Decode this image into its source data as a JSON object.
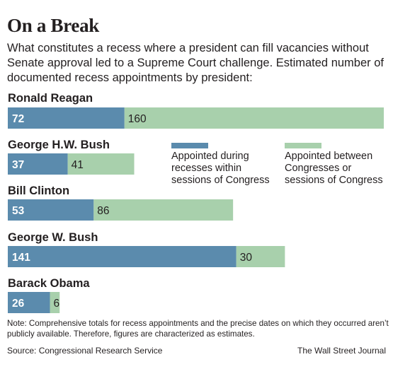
{
  "header": {
    "title": "On a Break",
    "subtitle": "What constitutes a recess where a president can fill vacancies without Senate approval led to a Supreme Court challenge. Estimated number of documented recess appointments by president:"
  },
  "colors": {
    "within": "#5b8bad",
    "between": "#a8d0ac"
  },
  "chart_data": {
    "type": "bar",
    "orientation": "horizontal",
    "stacked": true,
    "categories": [
      "Ronald Reagan",
      "George H.W. Bush",
      "Bill Clinton",
      "George W. Bush",
      "Barack Obama"
    ],
    "series": [
      {
        "name": "Appointed during recesses within sessions of Congress",
        "values": [
          72,
          37,
          53,
          141,
          26
        ]
      },
      {
        "name": "Appointed between Congresses or sessions of Congress",
        "values": [
          160,
          41,
          86,
          30,
          6
        ]
      }
    ],
    "legend_placement": "right of second bar",
    "grid": false
  },
  "footer": {
    "note": "Note: Comprehensive totals for recess appointments and the precise dates on which they occurred aren’t publicly available. Therefore, figures are characterized as estimates.",
    "source": "Source: Congressional Research Service",
    "credit": "The Wall Street Journal"
  }
}
